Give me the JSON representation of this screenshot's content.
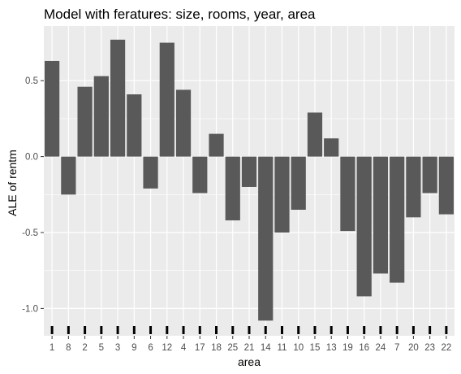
{
  "chart_data": {
    "type": "bar",
    "title": "Model with feratures: size, rooms, year, area",
    "xlabel": "area",
    "ylabel": "ALE of rentm",
    "categories": [
      "1",
      "8",
      "2",
      "5",
      "3",
      "9",
      "6",
      "12",
      "4",
      "17",
      "18",
      "25",
      "21",
      "14",
      "11",
      "10",
      "15",
      "13",
      "19",
      "16",
      "24",
      "7",
      "20",
      "23",
      "22"
    ],
    "values": [
      0.63,
      -0.25,
      0.46,
      0.53,
      0.77,
      0.41,
      -0.21,
      0.75,
      0.44,
      -0.24,
      0.15,
      -0.42,
      -0.2,
      -1.08,
      -0.5,
      -0.35,
      0.29,
      0.12,
      -0.49,
      -0.92,
      -0.77,
      -0.83,
      -0.4,
      -0.24,
      -0.38
    ],
    "y_ticks": [
      0.5,
      0.0,
      -0.5,
      -1.0
    ],
    "y_tick_labels": [
      "0.5",
      "0.0",
      "-0.5",
      "-1.0"
    ],
    "ylim": [
      -1.18,
      0.86
    ],
    "grid": true,
    "rug": true,
    "colors": {
      "panel": "#ebebeb",
      "grid_major": "#ffffff",
      "bar": "#595959",
      "rug": "#000000"
    }
  }
}
